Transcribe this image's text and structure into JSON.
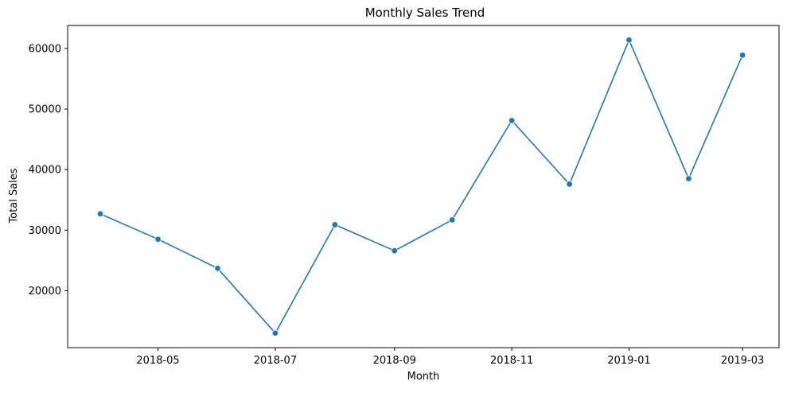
{
  "colors": {
    "series": "#1f77b4",
    "axes": "#000000",
    "background": "#ffffff"
  },
  "chart_data": {
    "type": "line",
    "title": "Monthly Sales Trend",
    "xlabel": "Month",
    "ylabel": "Total Sales",
    "grid": false,
    "marker": "circle",
    "x": [
      "2018-04",
      "2018-05",
      "2018-06",
      "2018-07",
      "2018-08",
      "2018-09",
      "2018-10",
      "2018-11",
      "2018-12",
      "2019-01",
      "2019-02",
      "2019-03"
    ],
    "series": [
      {
        "values": [
          32700,
          28500,
          23700,
          13000,
          30900,
          26600,
          31700,
          48100,
          37600,
          61400,
          38500,
          58900
        ]
      }
    ],
    "x_ticks": [
      "2018-05",
      "2018-07",
      "2018-09",
      "2018-11",
      "2019-01",
      "2019-03"
    ],
    "y_ticks": [
      20000,
      30000,
      40000,
      50000,
      60000
    ],
    "xlim": [
      "2018-03-15",
      "2019-03-20"
    ],
    "ylim": [
      10600,
      63800
    ]
  }
}
